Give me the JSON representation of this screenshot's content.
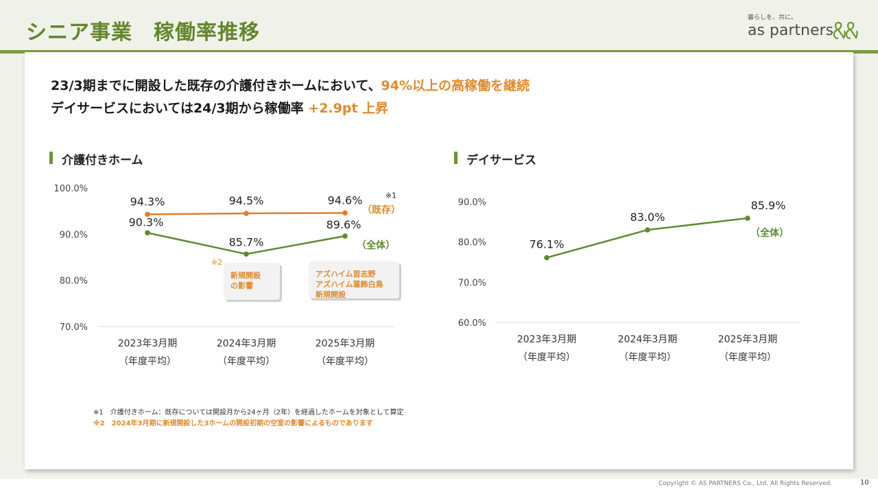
{
  "header": {
    "title": "シニア事業　稼働率推移",
    "logo_tagline": "暮らしを、共に。",
    "logo_name": "as partners"
  },
  "headline": {
    "line1_prefix": "23/3期までに開設した既存の介護付きホームにおいて、",
    "line1_accent": "94%以上の高稼働を継続",
    "line2_prefix": "デイサービスにおいては24/3期から稼働率 ",
    "line2_accent": "+2.9pt 上昇"
  },
  "colors": {
    "green": "#62862c",
    "orange": "#e08a2c",
    "line_green": "#5e8a2e",
    "line_orange": "#e07d2a"
  },
  "chart_data": [
    {
      "type": "line",
      "title": "介護付きホーム",
      "categories": [
        "2023年3月期",
        "2024年3月期",
        "2025年3月期"
      ],
      "category_sublabel": "（年度平均）",
      "yticks": [
        "100.0%",
        "90.0%",
        "80.0%",
        "70.0%"
      ],
      "ylim": [
        70,
        100
      ],
      "series": [
        {
          "name": "（既存）",
          "values": [
            94.3,
            94.5,
            94.6
          ],
          "labels": [
            "94.3%",
            "94.5%",
            "94.6%"
          ],
          "note": "※1"
        },
        {
          "name": "（全体）",
          "values": [
            90.3,
            85.7,
            89.6
          ],
          "labels": [
            "90.3%",
            "85.7%",
            "89.6%"
          ]
        }
      ],
      "annotations": [
        {
          "mark": "※2",
          "lines": [
            "新規開設",
            "の影響"
          ]
        },
        {
          "lines": [
            "アズハイム習志野",
            "アズハイム葛飾白鳥",
            "新規開設"
          ]
        }
      ]
    },
    {
      "type": "line",
      "title": "デイサービス",
      "categories": [
        "2023年3月期",
        "2024年3月期",
        "2025年3月期"
      ],
      "category_sublabel": "（年度平均）",
      "yticks": [
        "90.0%",
        "80.0%",
        "70.0%",
        "60.0%"
      ],
      "ylim": [
        60,
        90
      ],
      "series": [
        {
          "name": "（全体）",
          "values": [
            76.1,
            83.0,
            85.9
          ],
          "labels": [
            "76.1%",
            "83.0%",
            "85.9%"
          ]
        }
      ]
    }
  ],
  "footnotes": {
    "fn1": "※1　介護付きホーム：既存については開設月から24ヶ月（2年）を経過したホームを対象として算定",
    "fn2": "※2　2024年3月期に新規開設した3ホームの開設初期の空室の影響によるものであります"
  },
  "footer": {
    "copyright": "Copyright © AS PARTNERS Co., Ltd. All Rights Reserved.",
    "page": "10"
  }
}
